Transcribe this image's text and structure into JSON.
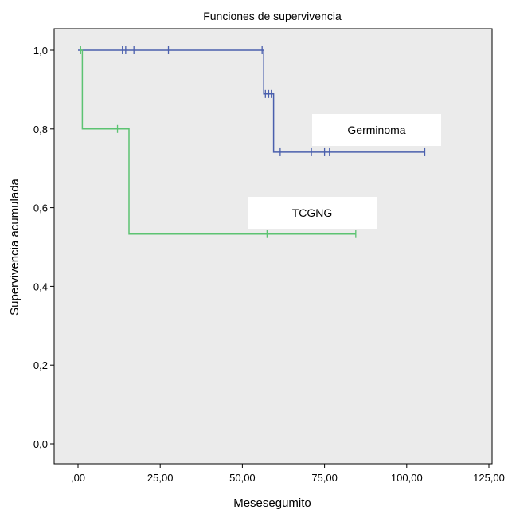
{
  "chart_data": {
    "type": "line",
    "subtype": "kaplan-meier step",
    "title": "Funciones de supervivencia",
    "xlabel": "Mesesegumito",
    "ylabel": "Supervivencia acumulada",
    "xlim": [
      0,
      125
    ],
    "ylim": [
      0,
      1
    ],
    "x_ticks": [
      0,
      25,
      50,
      75,
      100,
      125
    ],
    "x_tick_labels": [
      ",00",
      "25,00",
      "50,00",
      "75,00",
      "100,00",
      "125,00"
    ],
    "y_ticks": [
      0,
      0.2,
      0.4,
      0.6,
      0.8,
      1.0
    ],
    "y_tick_labels": [
      "0,0",
      "0,2",
      "0,4",
      "0,6",
      "0,8",
      "1,0"
    ],
    "grid": false,
    "plot_background": "#ebebeb",
    "series": [
      {
        "name": "Germinoma",
        "color": "#4a5fad",
        "steps": [
          [
            0,
            1.0
          ],
          [
            56.5,
            1.0
          ],
          [
            56.5,
            0.889
          ],
          [
            59.5,
            0.889
          ],
          [
            59.5,
            0.741
          ],
          [
            105.5,
            0.741
          ]
        ],
        "censored": [
          [
            13.5,
            1.0
          ],
          [
            14.5,
            1.0
          ],
          [
            17,
            1.0
          ],
          [
            27.5,
            1.0
          ],
          [
            56,
            1.0
          ],
          [
            57,
            0.889
          ],
          [
            58,
            0.889
          ],
          [
            58.8,
            0.889
          ],
          [
            61.5,
            0.741
          ],
          [
            71,
            0.741
          ],
          [
            75,
            0.741
          ],
          [
            76.5,
            0.741
          ],
          [
            105.5,
            0.741
          ]
        ],
        "label_box": "Germinoma"
      },
      {
        "name": "TCGNG",
        "color": "#5cc372",
        "steps": [
          [
            0.8,
            1.0
          ],
          [
            1.3,
            1.0
          ],
          [
            1.3,
            0.8
          ],
          [
            15.5,
            0.8
          ],
          [
            15.5,
            0.533
          ],
          [
            84.5,
            0.533
          ]
        ],
        "censored": [
          [
            0.8,
            1.0
          ],
          [
            12,
            0.8
          ],
          [
            57.5,
            0.533
          ],
          [
            84.5,
            0.533
          ]
        ],
        "label_box": "TCGNG"
      }
    ]
  }
}
